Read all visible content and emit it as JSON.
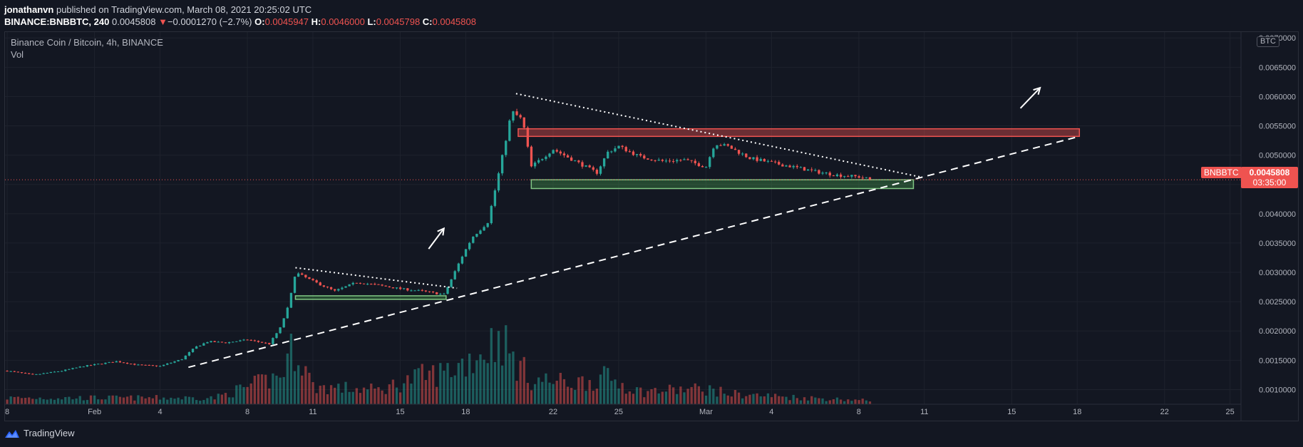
{
  "header": {
    "author": "jonathanvn",
    "published_text": "published on TradingView.com, March 08, 2021 20:25:02 UTC",
    "symbol": "BINANCE:BNBBTC, 240",
    "last": "0.0045808",
    "change_arrow": "▼",
    "change": "−0.0001270 (−2.7%)",
    "o_label": "O:",
    "o_value": "0.0045947",
    "h_label": "H:",
    "h_value": "0.0046000",
    "l_label": "L:",
    "l_value": "0.0045798",
    "c_label": "C:",
    "c_value": "0.0045808"
  },
  "legend": {
    "title": "Binance Coin / Bitcoin, 4h, BINANCE",
    "volume": "Vol"
  },
  "price_label": {
    "symbol": "BNBBTC",
    "price": "0.0045808",
    "countdown": "03:35:00"
  },
  "footer": {
    "brand": "TradingView"
  },
  "colors": {
    "background": "#131722",
    "up": "#26a69a",
    "down": "#ef5350",
    "grid": "#1e222d",
    "text": "#b2b5be"
  },
  "chart_data": {
    "type": "candlestick",
    "y_unit": "BTC",
    "ylim": [
      0.00075,
      0.0071
    ],
    "y_ticks": [
      "0.0010000",
      "0.0015000",
      "0.0020000",
      "0.0025000",
      "0.0030000",
      "0.0035000",
      "0.0040000",
      "0.0045000",
      "0.0050000",
      "0.0055000",
      "0.0060000",
      "0.0065000",
      "0.0070000"
    ],
    "x_range_days": [
      -0.1,
      56.5
    ],
    "x_ticks": [
      {
        "label": "8",
        "day": 0
      },
      {
        "label": "Feb",
        "day": 4
      },
      {
        "label": "4",
        "day": 7
      },
      {
        "label": "8",
        "day": 11
      },
      {
        "label": "11",
        "day": 14
      },
      {
        "label": "15",
        "day": 18
      },
      {
        "label": "18",
        "day": 21
      },
      {
        "label": "22",
        "day": 25
      },
      {
        "label": "25",
        "day": 28
      },
      {
        "label": "Mar",
        "day": 32
      },
      {
        "label": "4",
        "day": 35
      },
      {
        "label": "8",
        "day": 39
      },
      {
        "label": "11",
        "day": 42
      },
      {
        "label": "15",
        "day": 46
      },
      {
        "label": "18",
        "day": 49
      },
      {
        "label": "22",
        "day": 53
      },
      {
        "label": "25",
        "day": 56
      }
    ],
    "anchors": [
      [
        0,
        0.00132
      ],
      [
        1.2,
        0.00125
      ],
      [
        2.5,
        0.00132
      ],
      [
        3.5,
        0.0014
      ],
      [
        5,
        0.00148
      ],
      [
        6,
        0.00142
      ],
      [
        7,
        0.0014
      ],
      [
        8,
        0.00152
      ],
      [
        8.6,
        0.00172
      ],
      [
        9.2,
        0.00182
      ],
      [
        10,
        0.0018
      ],
      [
        11,
        0.00185
      ],
      [
        12,
        0.00178
      ],
      [
        12.5,
        0.00205
      ],
      [
        12.9,
        0.00245
      ],
      [
        13.2,
        0.003
      ],
      [
        14,
        0.00285
      ],
      [
        15,
        0.00268
      ],
      [
        16,
        0.00283
      ],
      [
        17,
        0.00278
      ],
      [
        18,
        0.00272
      ],
      [
        19,
        0.00268
      ],
      [
        20,
        0.00262
      ],
      [
        20.3,
        0.00285
      ],
      [
        20.8,
        0.00325
      ],
      [
        21.3,
        0.0036
      ],
      [
        22,
        0.00385
      ],
      [
        22.4,
        0.0045
      ],
      [
        22.8,
        0.0052
      ],
      [
        23.1,
        0.00575
      ],
      [
        23.6,
        0.0056
      ],
      [
        24,
        0.0048
      ],
      [
        25,
        0.0051
      ],
      [
        26,
        0.0049
      ],
      [
        27,
        0.0047
      ],
      [
        27.5,
        0.00505
      ],
      [
        28,
        0.00515
      ],
      [
        29,
        0.00497
      ],
      [
        30,
        0.0049
      ],
      [
        31,
        0.00492
      ],
      [
        32,
        0.0048
      ],
      [
        32.4,
        0.0052
      ],
      [
        33,
        0.00515
      ],
      [
        34,
        0.00495
      ],
      [
        35,
        0.00487
      ],
      [
        36,
        0.0048
      ],
      [
        37,
        0.00472
      ],
      [
        38,
        0.00466
      ],
      [
        39,
        0.00463
      ],
      [
        39.6,
        0.00458
      ]
    ],
    "candle_interval_days": 0.1667,
    "last_candle_day": 39.6,
    "last_close": 0.0045808,
    "volume_profile": [
      [
        0,
        0.09
      ],
      [
        9.5,
        0.09
      ],
      [
        12.5,
        0.4
      ],
      [
        13.2,
        0.85
      ],
      [
        14,
        0.25
      ],
      [
        17,
        0.2
      ],
      [
        19,
        0.4
      ],
      [
        20,
        0.45
      ],
      [
        21,
        0.6
      ],
      [
        22,
        0.8
      ],
      [
        22.6,
        1.0
      ],
      [
        23,
        0.7
      ],
      [
        24,
        0.35
      ],
      [
        26,
        0.3
      ],
      [
        27.5,
        0.38
      ],
      [
        29,
        0.18
      ],
      [
        32,
        0.22
      ],
      [
        33,
        0.15
      ],
      [
        36,
        0.1
      ],
      [
        39.6,
        0.05
      ]
    ],
    "drawings": {
      "support_zone_1": {
        "day_start": 13.2,
        "day_end": 20.1,
        "price_low": 0.00254,
        "price_high": 0.0026
      },
      "resistance_zone": {
        "day_start": 23.4,
        "day_end": 49.1,
        "price_low": 0.00532,
        "price_high": 0.00545
      },
      "support_zone_2": {
        "day_start": 24,
        "day_end": 41.5,
        "price_low": 0.00443,
        "price_high": 0.00458
      },
      "uptrend_line": {
        "from": [
          8.3,
          0.00138
        ],
        "to": [
          49.1,
          0.00532
        ]
      },
      "down_trendline_1": {
        "from": [
          13.2,
          0.00308
        ],
        "to": [
          20.6,
          0.00273
        ]
      },
      "down_trendline_2": {
        "from": [
          23.3,
          0.00605
        ],
        "to": [
          41.8,
          0.00463
        ]
      },
      "arrow_1": {
        "from": [
          19.3,
          0.0034
        ],
        "to": [
          20,
          0.00375
        ]
      },
      "arrow_2": {
        "from": [
          46.4,
          0.0058
        ],
        "to": [
          47.3,
          0.00615
        ]
      }
    }
  }
}
